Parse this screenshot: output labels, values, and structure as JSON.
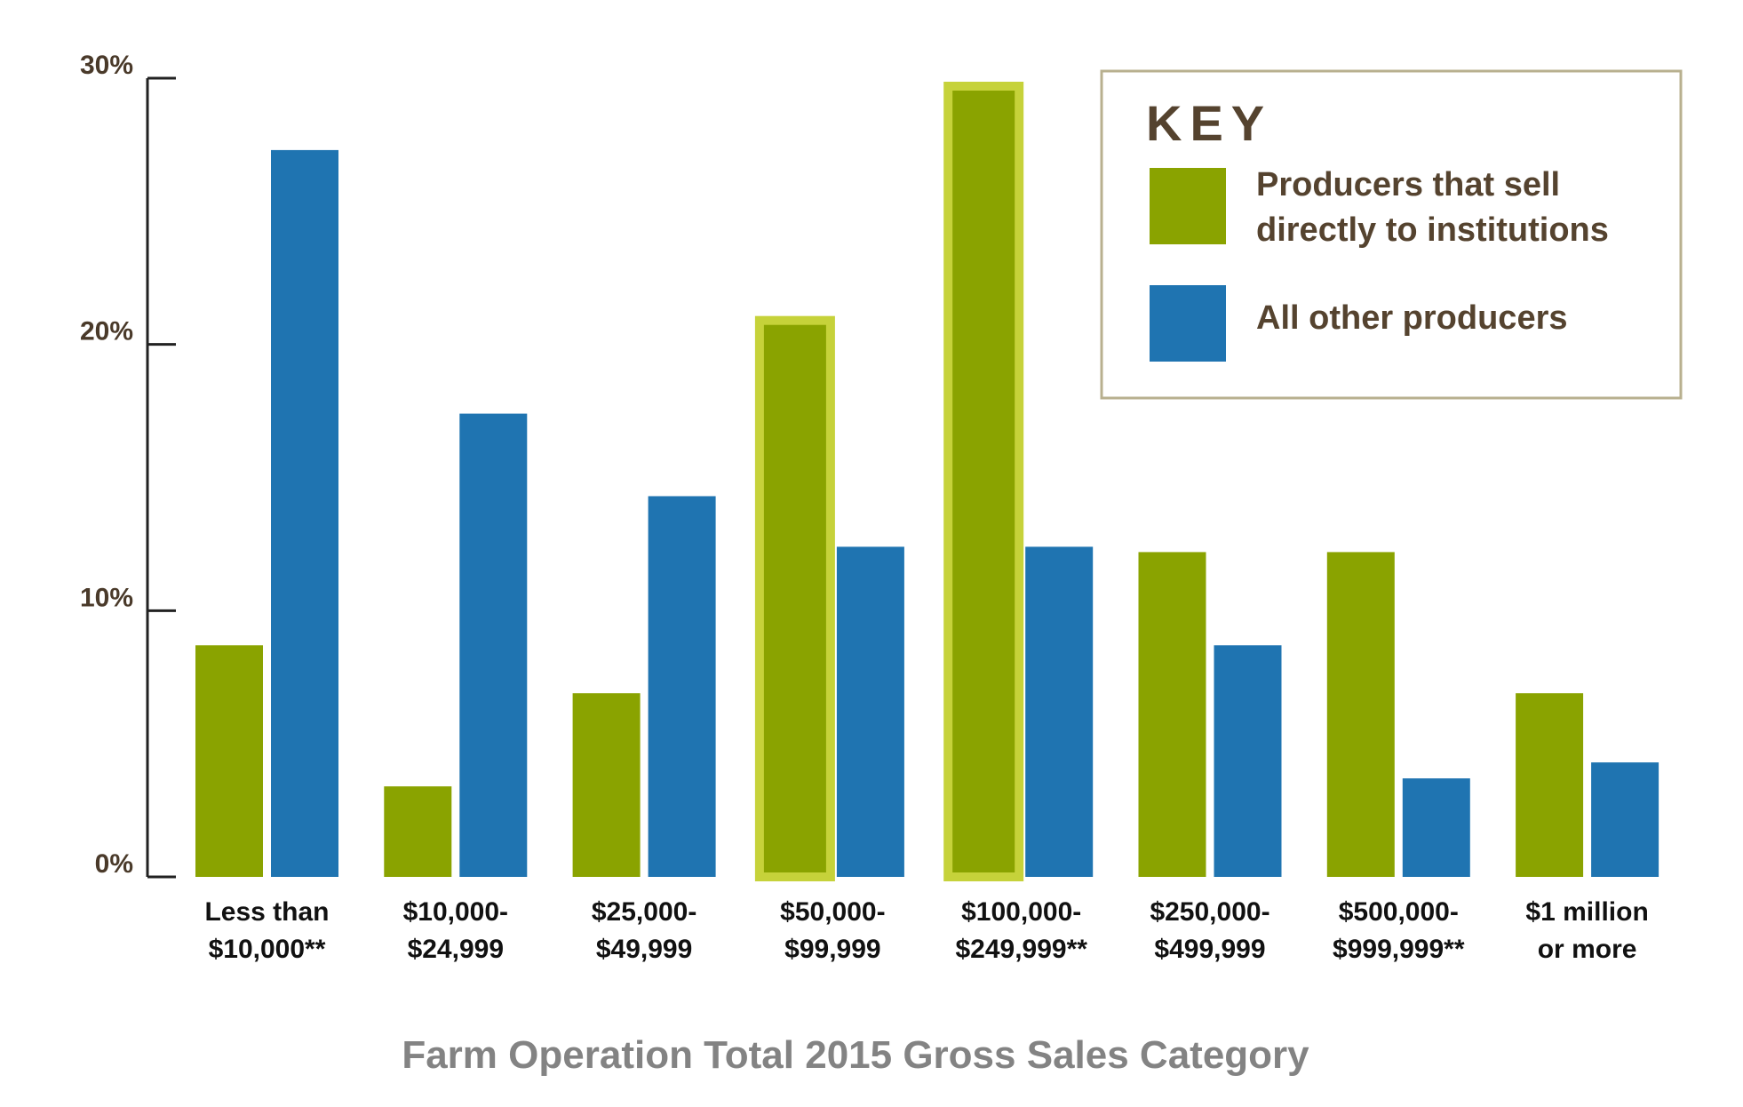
{
  "chart_data": {
    "type": "bar",
    "title": "",
    "xlabel": "Farm Operation Total 2015 Gross Sales Category",
    "ylabel": "",
    "ylim": [
      0,
      30
    ],
    "yticks": [
      0,
      10,
      20,
      30
    ],
    "ytick_labels": [
      "0%",
      "10%",
      "20%",
      "30%"
    ],
    "categories": [
      [
        "Less than",
        "$10,000**"
      ],
      [
        "$10,000-",
        "$24,999"
      ],
      [
        "$25,000-",
        "$49,999"
      ],
      [
        "$50,000-",
        "$99,999"
      ],
      [
        "$100,000-",
        "$249,999**"
      ],
      [
        "$250,000-",
        "$499,999"
      ],
      [
        "$500,000-",
        "$999,999**"
      ],
      [
        "$1 million",
        "or more"
      ]
    ],
    "series": [
      {
        "name": "Producers that sell directly to institutions",
        "color": "#8aa300",
        "highlight_color": "#c6d23a",
        "highlighted": [
          3,
          4
        ],
        "values": [
          8.7,
          3.4,
          6.9,
          20.9,
          29.7,
          12.2,
          12.2,
          6.9
        ]
      },
      {
        "name": "All other producers",
        "color": "#1f74b1",
        "values": [
          27.3,
          17.4,
          14.3,
          12.4,
          12.4,
          8.7,
          3.7,
          4.3
        ]
      }
    ],
    "legend": {
      "title": "KEY",
      "placement": "top-right",
      "border_color": "#b8b08f",
      "entries": [
        [
          "Producers that sell",
          "directly to institutions"
        ],
        [
          "All other producers"
        ]
      ]
    },
    "grid": false,
    "colors": {
      "axis": "#222222",
      "tick_text": "#4a3a2a",
      "category_text": "#111111",
      "xlabel_text": "#838383",
      "legend_text": "#55432f"
    }
  }
}
